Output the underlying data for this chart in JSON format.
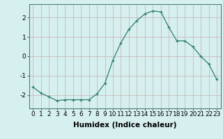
{
  "x": [
    0,
    1,
    2,
    3,
    4,
    5,
    6,
    7,
    8,
    9,
    10,
    11,
    12,
    13,
    14,
    15,
    16,
    17,
    18,
    19,
    20,
    21,
    22,
    23
  ],
  "y": [
    -1.6,
    -1.9,
    -2.1,
    -2.3,
    -2.25,
    -2.25,
    -2.25,
    -2.25,
    -1.95,
    -1.4,
    -0.2,
    0.7,
    1.4,
    1.85,
    2.2,
    2.35,
    2.3,
    1.5,
    0.8,
    0.8,
    0.5,
    0.0,
    -0.4,
    -1.2
  ],
  "xlabel": "Humidex (Indice chaleur)",
  "line_color": "#2e7d6e",
  "marker": "+",
  "bg_color": "#d6f0ef",
  "grid_color": "#c8b8b8",
  "ylim": [
    -2.7,
    2.7
  ],
  "xlim": [
    -0.5,
    23.5
  ],
  "yticks": [
    -2,
    -1,
    0,
    1,
    2
  ],
  "xticks": [
    0,
    1,
    2,
    3,
    4,
    5,
    6,
    7,
    8,
    9,
    10,
    11,
    12,
    13,
    14,
    15,
    16,
    17,
    18,
    19,
    20,
    21,
    22,
    23
  ],
  "tick_fontsize": 6.5,
  "xlabel_fontsize": 7.5
}
